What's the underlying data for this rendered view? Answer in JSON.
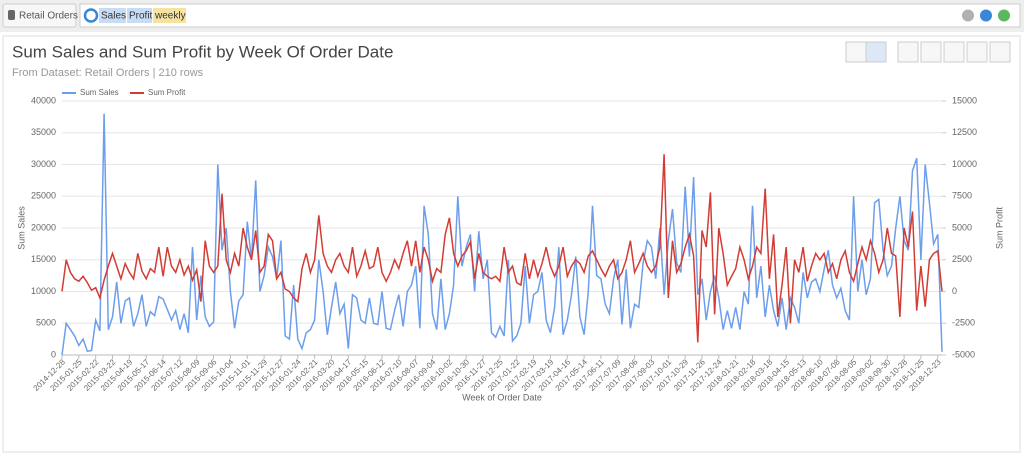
{
  "top_bar": {
    "dataset_button": "Retail Orders",
    "query_tokens": [
      "Sales",
      "Profit",
      "weekly"
    ]
  },
  "chart_data": {
    "type": "line",
    "title": "Sum Sales and Sum Profit by Week Of Order Date",
    "subtitle": "From Dataset: Retail Orders | 210 rows",
    "x_label": "Week of Order Date",
    "y_label": "Sum Sales",
    "y2_label": "Sum Profit",
    "categories": [
      "2014-12-28",
      null,
      null,
      null,
      "2015-01-25",
      null,
      null,
      null,
      "2015-02-22",
      null,
      null,
      null,
      "2015-03-22",
      null,
      null,
      null,
      "2015-04-19",
      null,
      null,
      null,
      "2015-05-17",
      null,
      null,
      null,
      "2015-06-14",
      null,
      null,
      null,
      "2015-07-12",
      null,
      null,
      null,
      "2015-08-09",
      null,
      null,
      null,
      "2015-09-06",
      null,
      null,
      null,
      "2015-10-04",
      null,
      null,
      null,
      "2015-11-01",
      null,
      null,
      null,
      "2015-11-29",
      null,
      null,
      null,
      "2015-12-27",
      null,
      null,
      null,
      "2016-01-24",
      null,
      null,
      null,
      "2016-02-21",
      null,
      null,
      null,
      "2016-03-20",
      null,
      null,
      null,
      "2016-04-17",
      null,
      null,
      null,
      "2016-05-15",
      null,
      null,
      null,
      "2016-06-12",
      null,
      null,
      null,
      "2016-07-10",
      null,
      null,
      null,
      "2016-08-07",
      null,
      null,
      null,
      "2016-09-04",
      null,
      null,
      null,
      "2016-10-02",
      null,
      null,
      null,
      "2016-10-30",
      null,
      null,
      null,
      "2016-11-27",
      null,
      null,
      null,
      "2016-12-25",
      null,
      null,
      null,
      "2017-01-22",
      null,
      null,
      null,
      "2017-02-19",
      null,
      null,
      null,
      "2017-03-19",
      null,
      null,
      null,
      "2017-04-16",
      null,
      null,
      null,
      "2017-05-14",
      null,
      null,
      null,
      "2017-06-11",
      null,
      null,
      null,
      "2017-07-09",
      null,
      null,
      null,
      "2017-08-06",
      null,
      null,
      null,
      "2017-09-03",
      null,
      null,
      null,
      "2017-10-01",
      null,
      null,
      null,
      "2017-10-29",
      null,
      null,
      null,
      "2017-11-26",
      null,
      null,
      null,
      "2017-12-24",
      null,
      null,
      null,
      "2018-01-21",
      null,
      null,
      null,
      "2018-02-18",
      null,
      null,
      null,
      "2018-03-18",
      null,
      null,
      null,
      "2018-04-15",
      null,
      null,
      null,
      "2018-05-13",
      null,
      null,
      null,
      "2018-06-10",
      null,
      null,
      null,
      "2018-07-08",
      null,
      null,
      null,
      "2018-08-05",
      null,
      null,
      null,
      "2018-09-02",
      null,
      null,
      null,
      "2018-09-30",
      null,
      null,
      null,
      "2018-10-28",
      null,
      null,
      null,
      "2018-11-25",
      null,
      null,
      null,
      "2018-12-23",
      null
    ],
    "series": [
      {
        "name": "Sum Sales",
        "color": "#6d9eeb",
        "values": [
          0,
          5000,
          4000,
          3000,
          1500,
          2500,
          600,
          700,
          5500,
          3800,
          38000,
          4000,
          6000,
          11500,
          5000,
          8500,
          9000,
          4500,
          6500,
          9500,
          4500,
          6800,
          6200,
          9200,
          8800,
          7200,
          5500,
          7000,
          4000,
          6500,
          3500,
          17000,
          5500,
          12500,
          6000,
          4500,
          5200,
          30000,
          16500,
          20000,
          10000,
          4200,
          8500,
          9500,
          21000,
          15000,
          27500,
          10000,
          12500,
          17000,
          15500,
          12000,
          18000,
          3000,
          2500,
          11000,
          2500,
          1000,
          3500,
          4000,
          5500,
          15000,
          10000,
          3200,
          7500,
          11500,
          6500,
          8000,
          1000,
          9500,
          9000,
          5500,
          5000,
          9000,
          5000,
          4800,
          10000,
          4200,
          4000,
          7000,
          9500,
          4500,
          10000,
          11000,
          14000,
          4200,
          23500,
          19000,
          6500,
          4000,
          12000,
          4000,
          6500,
          11000,
          25000,
          14000,
          17000,
          19000,
          10000,
          19500,
          12000,
          15000,
          3500,
          2800,
          4500,
          3000,
          15000,
          2200,
          3000,
          5000,
          14000,
          5000,
          9500,
          10000,
          13000,
          5500,
          3500,
          7500,
          17000,
          3200,
          5500,
          9500,
          15500,
          6000,
          3200,
          10000,
          23500,
          12500,
          12000,
          8000,
          6500,
          12000,
          15000,
          4800,
          13500,
          4200,
          8000,
          7500,
          14500,
          18000,
          17000,
          12000,
          20000,
          9500,
          18000,
          23000,
          14500,
          13000,
          26500,
          15500,
          28000,
          9500,
          12000,
          5500,
          10000,
          12500,
          9000,
          4000,
          7000,
          4200,
          7500,
          4000,
          10000,
          8000,
          23500,
          9000,
          14000,
          6000,
          11000,
          7000,
          4500,
          9000,
          4000,
          9000,
          7500,
          5000,
          13000,
          9000,
          11500,
          12000,
          10000,
          13500,
          16500,
          11000,
          9000,
          10500,
          7000,
          5500,
          25000,
          10000,
          15000,
          9500,
          12000,
          24000,
          24500,
          16500,
          12500,
          14000,
          20000,
          25000,
          18000,
          16500,
          29000,
          31000,
          15000,
          30000,
          24000,
          17500,
          19000,
          500
        ]
      },
      {
        "name": "Sum Profit",
        "color": "#d23c35",
        "axis": "y2",
        "values": [
          0,
          2500,
          1500,
          1000,
          800,
          1200,
          700,
          100,
          300,
          -500,
          900,
          2000,
          3000,
          2000,
          1000,
          2200,
          1500,
          1000,
          3000,
          1600,
          1000,
          1800,
          1500,
          3500,
          1200,
          3500,
          2000,
          1500,
          2500,
          1300,
          2000,
          900,
          1700,
          -800,
          4000,
          2000,
          1500,
          2000,
          7700,
          2500,
          1500,
          3000,
          2000,
          5000,
          3500,
          2500,
          4800,
          1500,
          2000,
          4500,
          4000,
          1000,
          1500,
          200,
          0,
          -500,
          -800,
          1800,
          3000,
          1500,
          2500,
          6000,
          3000,
          2000,
          1500,
          2500,
          3000,
          2000,
          1500,
          3500,
          1200,
          2000,
          3200,
          1800,
          2000,
          3500,
          1500,
          800,
          1500,
          2500,
          1800,
          3000,
          4000,
          2000,
          4000,
          1500,
          3500,
          2500,
          800,
          1800,
          1500,
          4500,
          5800,
          3000,
          2000,
          2800,
          3200,
          3900,
          1000,
          3000,
          1500,
          1200,
          1000,
          1200,
          800,
          3500,
          1500,
          2000,
          700,
          500,
          3000,
          1000,
          2500,
          1200,
          2200,
          3500,
          2000,
          1200,
          2000,
          3500,
          1200,
          2000,
          2500,
          2200,
          1500,
          2800,
          3200,
          2500,
          1800,
          1200,
          2000,
          2500,
          1000,
          1500,
          2500,
          4000,
          1500,
          2200,
          3000,
          2000,
          1500,
          2000,
          3500,
          10800,
          -500,
          4000,
          1500,
          2200,
          3500,
          4500,
          2800,
          -4000,
          4800,
          3500,
          7800,
          -1800,
          5000,
          3000,
          500,
          1200,
          1800,
          3500,
          2500,
          1000,
          2000,
          3500,
          3000,
          8100,
          1000,
          4500,
          -2000,
          500,
          3500,
          -2500,
          2500,
          1500,
          3500,
          800,
          2000,
          3000,
          2500,
          3000,
          1500,
          2200,
          1000,
          2500,
          3200,
          1500,
          800,
          2200,
          3500,
          2500,
          4000,
          3000,
          1500,
          2500,
          5000,
          3000,
          2800,
          -2000,
          5000,
          3500,
          6300,
          -1500,
          2000,
          -1200,
          2500,
          3000,
          3200,
          0
        ]
      }
    ],
    "ylim": [
      0,
      40000
    ],
    "yticks": [
      0,
      5000,
      10000,
      15000,
      20000,
      25000,
      30000,
      35000,
      40000
    ],
    "y2lim": [
      -5000,
      15000
    ],
    "y2ticks": [
      -5000,
      -2500,
      0,
      2500,
      5000,
      7500,
      10000,
      12500,
      15000
    ],
    "grid": true
  }
}
